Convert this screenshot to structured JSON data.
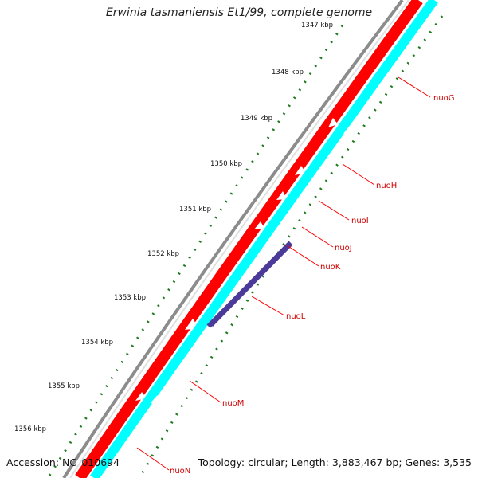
{
  "title": "Erwinia tasmaniensis Et1/99, complete genome",
  "footer": {
    "accession": "Accession: NC_010694",
    "stats": "Topology: circular; Length: 3,883,467 bp; Genes: 3,535"
  },
  "ticks": [
    {
      "label": "1347 kbp"
    },
    {
      "label": "1348 kbp"
    },
    {
      "label": "1349 kbp"
    },
    {
      "label": "1350 kbp"
    },
    {
      "label": "1351 kbp"
    },
    {
      "label": "1352 kbp"
    },
    {
      "label": "1353 kbp"
    },
    {
      "label": "1354 kbp"
    },
    {
      "label": "1355 kbp"
    },
    {
      "label": "1356 kbp"
    }
  ],
  "genes": [
    {
      "name": "nuoG"
    },
    {
      "name": "nuoH"
    },
    {
      "name": "nuoI"
    },
    {
      "name": "nuoJ"
    },
    {
      "name": "nuoK"
    },
    {
      "name": "nuoL"
    },
    {
      "name": "nuoM"
    },
    {
      "name": "nuoN"
    }
  ],
  "colors": {
    "backbone": "#8c8c8c",
    "cds_strand": "#ff0000",
    "gene_track": "#00ffff",
    "highlight_track": "#4b3a9a",
    "tick_marks": "#1f7a1f",
    "label_text": "#cc0000"
  }
}
